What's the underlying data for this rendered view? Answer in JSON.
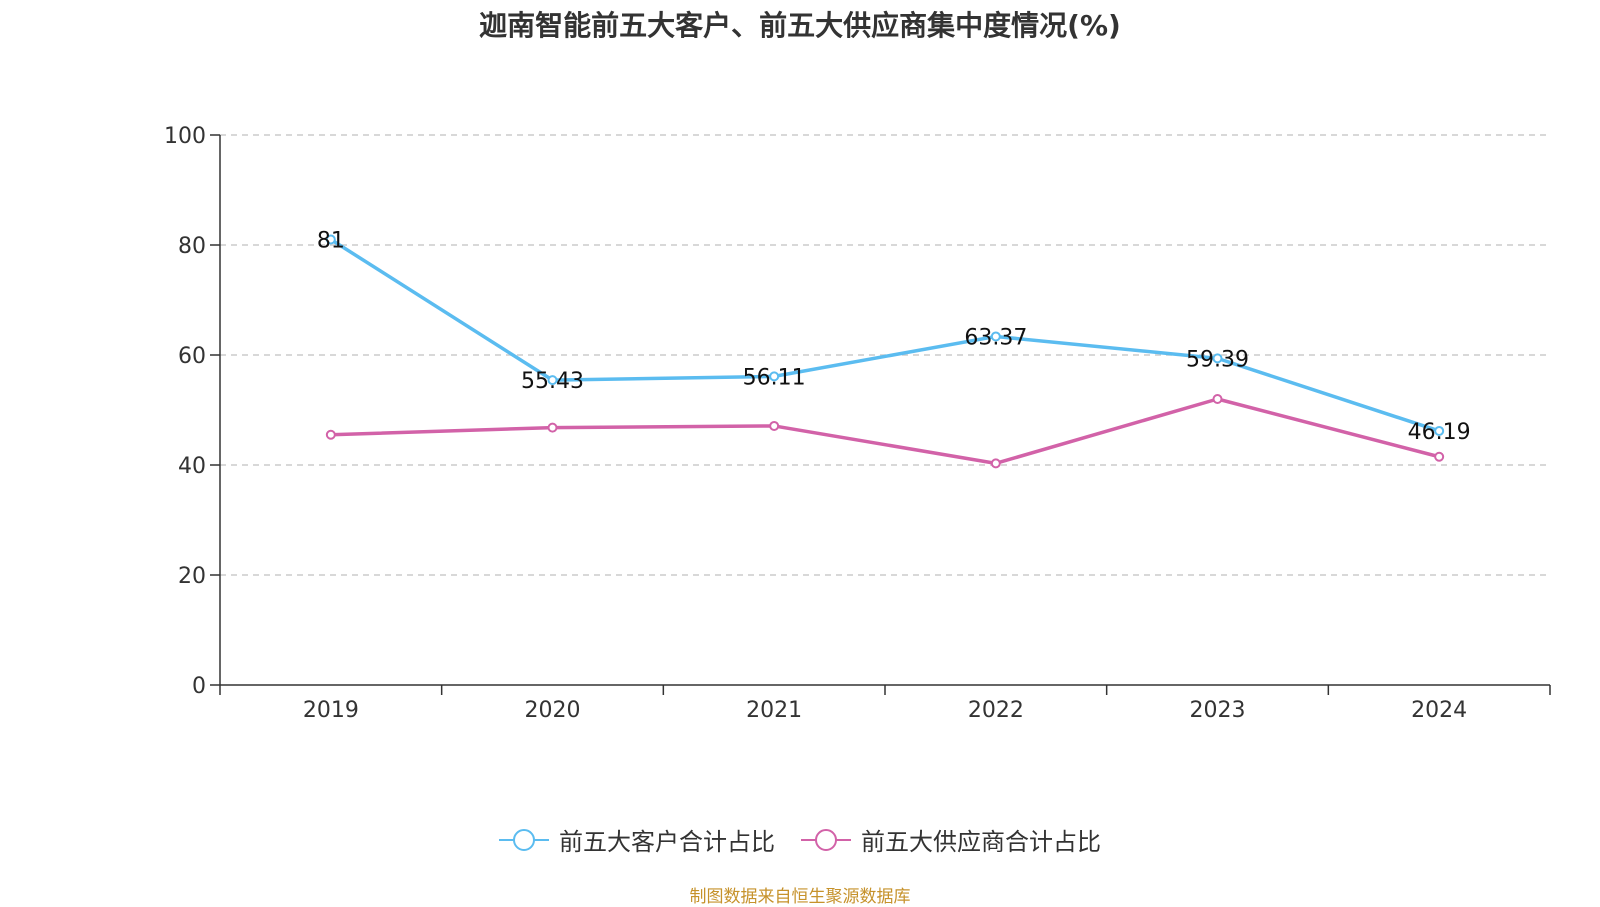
{
  "colors": {
    "customers": "#5bbcf0",
    "suppliers": "#d262a8",
    "axis": "#333333",
    "grid": "#cccccc",
    "source": "#c6922b"
  },
  "chart_data": {
    "type": "line",
    "title": "迦南智能前五大客户、前五大供应商集中度情况(%)",
    "categories": [
      "2019",
      "2020",
      "2021",
      "2022",
      "2023",
      "2024"
    ],
    "ylim": [
      0,
      100
    ],
    "yticks": [
      "0",
      "20",
      "40",
      "60",
      "80",
      "100"
    ],
    "grid": true,
    "legend_position": "bottom",
    "series": [
      {
        "name": "前五大客户合计占比",
        "color": "#5bbcf0",
        "values": [
          81,
          55.43,
          56.11,
          63.37,
          59.39,
          46.19
        ],
        "labels": [
          "81",
          "55.43",
          "56.11",
          "63.37",
          "59.39",
          "46.19"
        ]
      },
      {
        "name": "前五大供应商合计占比",
        "color": "#d262a8",
        "values": [
          45.5,
          46.8,
          47.1,
          40.3,
          52.0,
          41.5
        ]
      }
    ]
  },
  "source_note": "制图数据来自恒生聚源数据库"
}
